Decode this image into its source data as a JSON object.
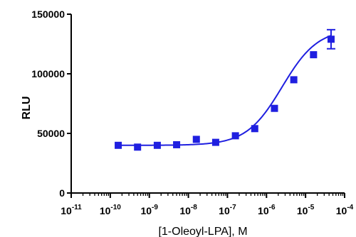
{
  "chart_data": {
    "type": "scatter",
    "title": "",
    "xlabel": "[1-Oleoyl-LPA], M",
    "ylabel": "RLU",
    "x_scale": "log",
    "xlim": [
      1e-11,
      0.0001
    ],
    "ylim": [
      0,
      150000
    ],
    "x_ticks": [
      {
        "base": "10",
        "exp": "-11"
      },
      {
        "base": "10",
        "exp": "-10"
      },
      {
        "base": "10",
        "exp": "-9"
      },
      {
        "base": "10",
        "exp": "-8"
      },
      {
        "base": "10",
        "exp": "-7"
      },
      {
        "base": "10",
        "exp": "-6"
      },
      {
        "base": "10",
        "exp": "-5"
      },
      {
        "base": "10",
        "exp": "-4"
      }
    ],
    "y_ticks": [
      "0",
      "50000",
      "100000",
      "150000"
    ],
    "grid": false,
    "color": "#1f1fe0",
    "series": [
      {
        "x": [
          1.6e-10,
          5e-10,
          1.6e-09,
          5e-09,
          1.6e-08,
          5e-08,
          1.6e-07,
          5e-07,
          1.6e-06,
          5e-06,
          1.6e-05,
          4.5e-05
        ],
        "y": [
          40000,
          38500,
          40000,
          40500,
          45000,
          42500,
          48000,
          54000,
          71000,
          95000,
          116000,
          129000
        ],
        "error": [
          0,
          0,
          0,
          0,
          0,
          0,
          0,
          0,
          0,
          0,
          0,
          8000
        ]
      }
    ],
    "fit": {
      "type": "sigmoid",
      "bottom": 40000,
      "top": 138000,
      "logEC50": -5.6,
      "hill": 0.95,
      "x_range": [
        1.6e-10,
        4.5e-05
      ]
    }
  }
}
